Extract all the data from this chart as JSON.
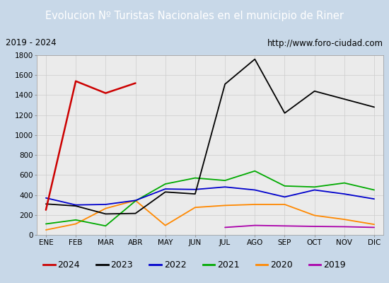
{
  "title": "Evolucion Nº Turistas Nacionales en el municipio de Riner",
  "subtitle_left": "2019 - 2024",
  "subtitle_right": "http://www.foro-ciudad.com",
  "title_bg_color": "#4a8fd4",
  "title_text_color": "#ffffff",
  "plot_bg_color": "#ebebeb",
  "outer_bg_color": "#c8d8e8",
  "months": [
    "ENE",
    "FEB",
    "MAR",
    "ABR",
    "MAY",
    "JUN",
    "JUL",
    "AGO",
    "SEP",
    "OCT",
    "NOV",
    "DIC"
  ],
  "ylim": [
    0,
    1800
  ],
  "yticks": [
    0,
    200,
    400,
    600,
    800,
    1000,
    1200,
    1400,
    1600,
    1800
  ],
  "series": {
    "2024": {
      "color": "#cc0000",
      "linewidth": 1.8,
      "data": [
        250,
        1540,
        1420,
        1520,
        null,
        null,
        null,
        null,
        null,
        null,
        null,
        null
      ]
    },
    "2023": {
      "color": "#000000",
      "linewidth": 1.3,
      "data": [
        310,
        290,
        210,
        215,
        430,
        410,
        1510,
        1760,
        1220,
        1440,
        1360,
        1280
      ]
    },
    "2022": {
      "color": "#0000cc",
      "linewidth": 1.3,
      "data": [
        370,
        300,
        305,
        345,
        460,
        455,
        480,
        450,
        380,
        450,
        410,
        360
      ]
    },
    "2021": {
      "color": "#00aa00",
      "linewidth": 1.3,
      "data": [
        110,
        150,
        90,
        340,
        510,
        570,
        545,
        640,
        490,
        480,
        520,
        450
      ]
    },
    "2020": {
      "color": "#ff8800",
      "linewidth": 1.3,
      "data": [
        50,
        110,
        265,
        345,
        95,
        275,
        295,
        305,
        305,
        195,
        155,
        105
      ]
    },
    "2019": {
      "color": "#aa00aa",
      "linewidth": 1.3,
      "data": [
        null,
        null,
        null,
        null,
        null,
        null,
        75,
        95,
        90,
        85,
        82,
        75
      ]
    }
  },
  "legend_order": [
    "2024",
    "2023",
    "2022",
    "2021",
    "2020",
    "2019"
  ]
}
